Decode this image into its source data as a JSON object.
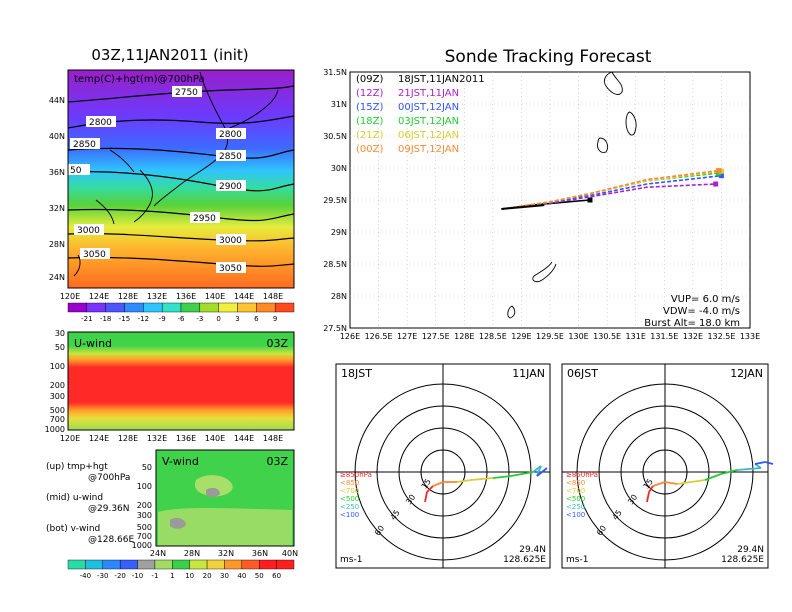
{
  "colors": {
    "temp_scale": [
      "#9900cc",
      "#7a33ff",
      "#4d55ff",
      "#2d8cff",
      "#2fc6ff",
      "#31e1c8",
      "#3ed24a",
      "#a4dc2a",
      "#f0f03c",
      "#ffc430",
      "#ff8a25",
      "#ff4a1e"
    ],
    "wind_scale": [
      "#28dcaa",
      "#1fbfe0",
      "#2d87ff",
      "#3560ff",
      "#a0a0a0",
      "#a0dc64",
      "#39d04a",
      "#c8e63c",
      "#f0d23c",
      "#ff9628",
      "#ff5a28",
      "#ff1f1f"
    ],
    "track_09Z": "#000000",
    "track_12Z": "#aa22cc",
    "track_15Z": "#3355ff",
    "track_18Z": "#22cc33",
    "track_21Z": "#ddcc33",
    "track_00Z": "#ff8833"
  },
  "map_panel": {
    "title": "03Z,11JAN2011 (init)",
    "subtitle": "temp(C)+hgt(m)@700hPa",
    "lat_labels": [
      "44N",
      "40N",
      "36N",
      "32N",
      "28N",
      "24N"
    ],
    "lon_labels": [
      "120E",
      "124E",
      "128E",
      "132E",
      "136E",
      "140E",
      "144E",
      "148E"
    ],
    "contour_labels": [
      "2750",
      "2800",
      "2800",
      "2850",
      "2850",
      "2900",
      "2900",
      "2950",
      "3000",
      "3000",
      "3050",
      "3050",
      "50"
    ],
    "colorbar_labels": [
      "-21",
      "-18",
      "-15",
      "-12",
      "-9",
      "-6",
      "-3",
      "0",
      "3",
      "6",
      "9"
    ]
  },
  "uwind_panel": {
    "title": "U-wind",
    "time": "03Z",
    "pressure_labels": [
      "30",
      "50",
      "100",
      "200",
      "300",
      "500",
      "700",
      "1000"
    ],
    "lon_labels": [
      "120E",
      "124E",
      "128E",
      "132E",
      "136E",
      "140E",
      "144E",
      "148E"
    ]
  },
  "vwind_panel": {
    "title": "V-wind",
    "time": "03Z",
    "pressure_labels": [
      "50",
      "100",
      "200",
      "300",
      "500",
      "700",
      "1000"
    ],
    "lat_labels": [
      "24N",
      "28N",
      "32N",
      "36N",
      "40N"
    ]
  },
  "notes": {
    "up": "(up) tmp+hgt",
    "up2": "@700hPa",
    "mid": "(mid) u-wind",
    "mid2": "@29.36N",
    "bot": "(bot) v-wind",
    "bot2": "@128.66E"
  },
  "wind_colorbar_labels": [
    "-40",
    "-30",
    "-20",
    "-10",
    "-1",
    "1",
    "10",
    "20",
    "30",
    "40",
    "50",
    "60"
  ],
  "tracking": {
    "title": "Sonde Tracking Forecast",
    "legend": [
      {
        "code": "(09Z)",
        "time": "18JST,11JAN2011"
      },
      {
        "code": "(12Z)",
        "time": "21JST,11JAN"
      },
      {
        "code": "(15Z)",
        "time": "00JST,12JAN"
      },
      {
        "code": "(18Z)",
        "time": "03JST,12JAN"
      },
      {
        "code": "(21Z)",
        "time": "06JST,12JAN"
      },
      {
        "code": "(00Z)",
        "time": "09JST,12JAN"
      }
    ],
    "lat_labels": [
      "31.5N",
      "31N",
      "30.5N",
      "30N",
      "29.5N",
      "29N",
      "28.5N",
      "28N",
      "27.5N"
    ],
    "lon_labels": [
      "126E",
      "126.5E",
      "127E",
      "127.5E",
      "128E",
      "128.5E",
      "129E",
      "129.5E",
      "130E",
      "130.5E",
      "131E",
      "131.5E",
      "132E",
      "132.5E",
      "133E"
    ],
    "vup": "VUP= 6.0 m/s",
    "vdw": "VDW= -4.0 m/s",
    "burst": "Burst Alt= 18.0 km"
  },
  "hodo_left": {
    "time": "18JST",
    "date": "11JAN",
    "rings": [
      "15",
      "30",
      "45",
      "60"
    ],
    "levels": [
      "≥850hPa",
      "<850",
      "<700",
      "<500",
      "<250",
      "<100"
    ],
    "unit": "ms-1",
    "lat": "29.4N",
    "lon": "128.625E"
  },
  "hodo_right": {
    "time": "06JST",
    "date": "12JAN",
    "rings": [
      "15",
      "30",
      "45",
      "60"
    ],
    "levels": [
      "≥850hPa",
      "<850",
      "<700",
      "<500",
      "<250",
      "<100"
    ],
    "unit": "ms-1",
    "lat": "29.4N",
    "lon": "128.625E"
  },
  "chart_data": [
    {
      "type": "line",
      "title": "Sonde Tracking Forecast",
      "xlabel": "",
      "ylabel": "",
      "xlim": [
        126,
        133
      ],
      "ylim": [
        27.5,
        31.5
      ],
      "series": [
        {
          "name": "(09Z) 18JST,11JAN2011",
          "points": [
            [
              128.65,
              29.36
            ],
            [
              129.2,
              29.42
            ],
            [
              129.8,
              29.47
            ],
            [
              130.2,
              29.5
            ]
          ]
        },
        {
          "name": "(12Z) 21JST,11JAN",
          "points": [
            [
              128.65,
              29.36
            ],
            [
              129.5,
              29.45
            ],
            [
              130.2,
              29.55
            ],
            [
              131.2,
              29.7
            ],
            [
              132.4,
              29.75
            ]
          ]
        },
        {
          "name": "(15Z) 00JST,12JAN",
          "points": [
            [
              128.65,
              29.36
            ],
            [
              129.5,
              29.46
            ],
            [
              130.2,
              29.57
            ],
            [
              131.2,
              29.75
            ],
            [
              132.5,
              29.88
            ]
          ]
        },
        {
          "name": "(18Z) 03JST,12JAN",
          "points": [
            [
              128.65,
              29.36
            ],
            [
              129.5,
              29.47
            ],
            [
              130.2,
              29.6
            ],
            [
              131.2,
              29.8
            ],
            [
              132.45,
              29.92
            ]
          ]
        },
        {
          "name": "(21Z) 06JST,12JAN",
          "points": [
            [
              128.65,
              29.36
            ],
            [
              129.5,
              29.47
            ],
            [
              130.2,
              29.6
            ],
            [
              131.2,
              29.8
            ],
            [
              132.5,
              29.95
            ]
          ]
        },
        {
          "name": "(00Z) 09JST,12JAN",
          "points": [
            [
              128.65,
              29.36
            ],
            [
              129.5,
              29.47
            ],
            [
              130.2,
              29.6
            ],
            [
              131.2,
              29.82
            ],
            [
              132.45,
              29.96
            ]
          ]
        }
      ],
      "annotations": [
        "VUP= 6.0 m/s",
        "VDW= -4.0 m/s",
        "Burst Alt= 18.0 km"
      ]
    }
  ]
}
